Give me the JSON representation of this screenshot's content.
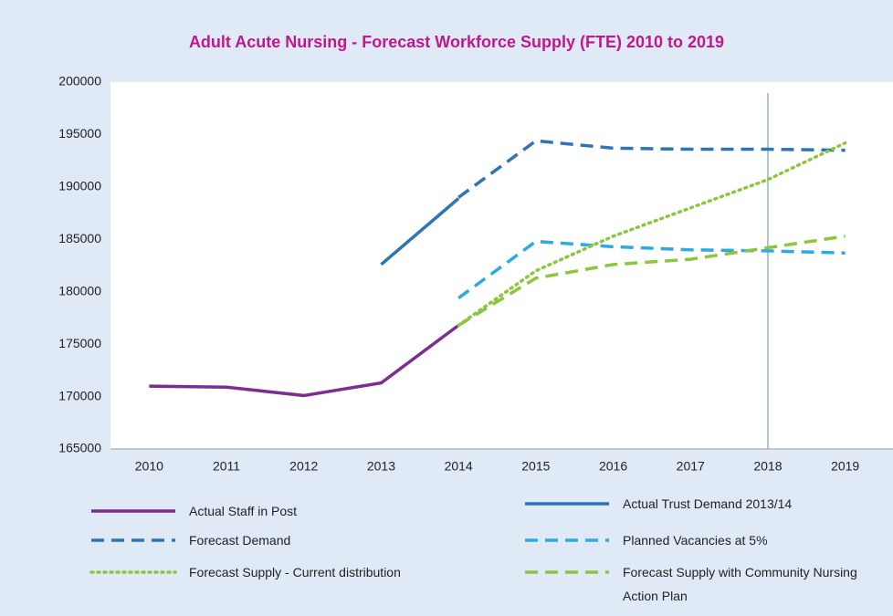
{
  "chart_data": {
    "type": "line",
    "title": "Adult Acute Nursing - Forecast Workforce Supply (FTE) 2010 to 2019",
    "title_color": "#c0178e",
    "categories": [
      "2010",
      "2011",
      "2012",
      "2013",
      "2014",
      "2015",
      "2016",
      "2017",
      "2018",
      "2019"
    ],
    "ylim": [
      165000,
      200000
    ],
    "yticks": [
      165000,
      170000,
      175000,
      180000,
      185000,
      190000,
      195000,
      200000
    ],
    "grid": false,
    "reference_line": {
      "x": "2018",
      "color": "#8fb3d1"
    },
    "series": [
      {
        "name": "Actual Staff in Post",
        "color": "#7a2f8f",
        "dash": "solid",
        "values": [
          171000,
          170900,
          170100,
          171300,
          176800,
          null,
          null,
          null,
          null,
          null
        ]
      },
      {
        "name": "Actual Trust Demand 2013/14",
        "color": "#2f74b5",
        "dash": "solid",
        "values": [
          null,
          null,
          null,
          182600,
          188900,
          null,
          null,
          null,
          null,
          null
        ]
      },
      {
        "name": "Forecast Demand",
        "color": "#2f74b5",
        "dash": "dashed",
        "values": [
          null,
          null,
          null,
          null,
          189000,
          194400,
          193700,
          193600,
          193600,
          193500
        ]
      },
      {
        "name": "Planned Vacancies at 5%",
        "color": "#2eaae1",
        "dash": "dashed",
        "values": [
          null,
          null,
          null,
          null,
          179400,
          184800,
          184300,
          184000,
          183900,
          183700
        ]
      },
      {
        "name": "Forecast Supply - Current distribution",
        "color": "#8cc63f",
        "dash": "dotted",
        "values": [
          null,
          null,
          null,
          null,
          176800,
          182000,
          185300,
          188000,
          190700,
          194200
        ]
      },
      {
        "name": "Forecast Supply with Community Nursing Action Plan",
        "color": "#8cc63f",
        "dash": "dashed",
        "values": [
          null,
          null,
          null,
          null,
          176800,
          181300,
          182600,
          183100,
          184200,
          185300
        ]
      }
    ]
  }
}
